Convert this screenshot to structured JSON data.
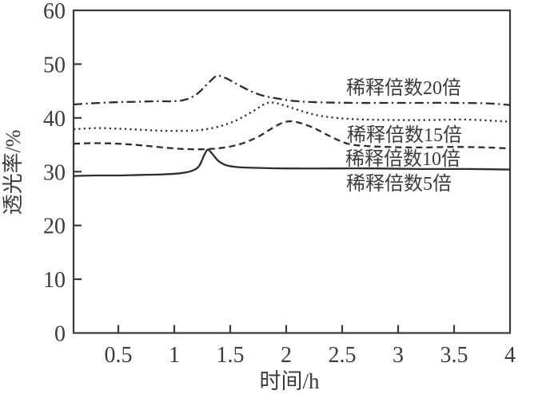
{
  "figure": {
    "background": "#ffffff",
    "text_color": "#3b3b3b",
    "axis_color": "#3a3a3a",
    "curve_color": "#2d2d2d"
  },
  "chart_data": {
    "type": "line",
    "title": "",
    "xlabel": "时间/h",
    "ylabel": "透光率/%",
    "xlim": [
      0.1,
      4
    ],
    "ylim": [
      0,
      60
    ],
    "grid": false,
    "legend_position": "inline-labels-right",
    "x_ticks": [
      0.5,
      1,
      1.5,
      2,
      2.5,
      3,
      3.5,
      4
    ],
    "x_tick_labels": [
      "0.5",
      "1",
      "1.5",
      "2",
      "2.5",
      "3",
      "3.5",
      "4"
    ],
    "y_ticks": [
      0,
      10,
      20,
      30,
      40,
      50,
      60
    ],
    "y_tick_labels": [
      "0",
      "10",
      "20",
      "30",
      "40",
      "50",
      "60"
    ],
    "series": [
      {
        "id": "dilution-20x",
        "name": "稀释倍数20倍",
        "style": "dash-dot",
        "points": [
          [
            0.1,
            42.5
          ],
          [
            0.25,
            42.7
          ],
          [
            0.45,
            42.9
          ],
          [
            0.65,
            43.0
          ],
          [
            0.85,
            43.1
          ],
          [
            1.0,
            43.1
          ],
          [
            1.1,
            43.4
          ],
          [
            1.2,
            44.4
          ],
          [
            1.3,
            46.4
          ],
          [
            1.38,
            47.8
          ],
          [
            1.46,
            47.4
          ],
          [
            1.55,
            46.4
          ],
          [
            1.68,
            45.0
          ],
          [
            1.8,
            44.1
          ],
          [
            1.95,
            43.5
          ],
          [
            2.1,
            43.1
          ],
          [
            2.3,
            42.9
          ],
          [
            2.6,
            42.8
          ],
          [
            2.9,
            42.8
          ],
          [
            3.2,
            42.8
          ],
          [
            3.5,
            42.8
          ],
          [
            3.8,
            42.7
          ],
          [
            4.0,
            42.4
          ]
        ]
      },
      {
        "id": "dilution-15x",
        "name": "稀释倍数15倍",
        "style": "dotted",
        "points": [
          [
            0.1,
            37.9
          ],
          [
            0.3,
            38.1
          ],
          [
            0.5,
            38.0
          ],
          [
            0.7,
            37.8
          ],
          [
            0.9,
            37.6
          ],
          [
            1.1,
            37.6
          ],
          [
            1.25,
            37.8
          ],
          [
            1.4,
            38.4
          ],
          [
            1.55,
            39.5
          ],
          [
            1.7,
            41.2
          ],
          [
            1.82,
            42.7
          ],
          [
            1.9,
            42.8
          ],
          [
            2.0,
            42.2
          ],
          [
            2.15,
            41.2
          ],
          [
            2.3,
            40.4
          ],
          [
            2.5,
            39.9
          ],
          [
            2.7,
            39.7
          ],
          [
            3.0,
            39.6
          ],
          [
            3.3,
            39.6
          ],
          [
            3.6,
            39.7
          ],
          [
            4.0,
            39.3
          ]
        ]
      },
      {
        "id": "dilution-10x",
        "name": "稀释倍数10倍",
        "style": "dashed",
        "points": [
          [
            0.1,
            35.2
          ],
          [
            0.3,
            35.3
          ],
          [
            0.5,
            35.2
          ],
          [
            0.7,
            34.9
          ],
          [
            0.9,
            34.5
          ],
          [
            1.1,
            34.2
          ],
          [
            1.3,
            34.2
          ],
          [
            1.45,
            34.5
          ],
          [
            1.6,
            35.2
          ],
          [
            1.75,
            36.5
          ],
          [
            1.9,
            38.4
          ],
          [
            2.0,
            39.3
          ],
          [
            2.1,
            39.2
          ],
          [
            2.25,
            38.1
          ],
          [
            2.4,
            36.5
          ],
          [
            2.55,
            35.2
          ],
          [
            2.7,
            34.8
          ],
          [
            2.9,
            34.6
          ],
          [
            3.2,
            34.5
          ],
          [
            3.5,
            34.6
          ],
          [
            3.8,
            34.5
          ],
          [
            4.0,
            34.3
          ]
        ]
      },
      {
        "id": "dilution-5x",
        "name": "稀释倍数5倍",
        "style": "solid",
        "points": [
          [
            0.1,
            29.2
          ],
          [
            0.3,
            29.3
          ],
          [
            0.5,
            29.3
          ],
          [
            0.7,
            29.4
          ],
          [
            0.9,
            29.5
          ],
          [
            1.05,
            29.7
          ],
          [
            1.15,
            30.1
          ],
          [
            1.22,
            31.0
          ],
          [
            1.27,
            33.2
          ],
          [
            1.3,
            34.1
          ],
          [
            1.34,
            33.3
          ],
          [
            1.4,
            31.9
          ],
          [
            1.48,
            31.1
          ],
          [
            1.6,
            30.8
          ],
          [
            1.75,
            30.7
          ],
          [
            2.0,
            30.6
          ],
          [
            2.4,
            30.6
          ],
          [
            2.8,
            30.6
          ],
          [
            3.2,
            30.5
          ],
          [
            3.6,
            30.5
          ],
          [
            4.0,
            30.4
          ]
        ]
      }
    ]
  }
}
